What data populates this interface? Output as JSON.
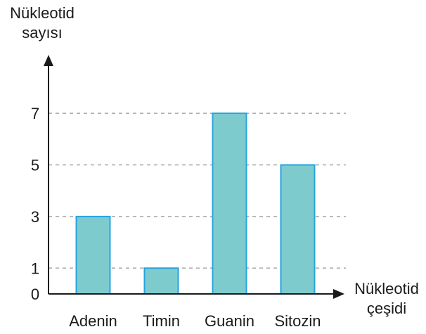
{
  "chart_data": {
    "type": "bar",
    "ylabel_lines": [
      "Nükleotid",
      "sayısı"
    ],
    "xlabel_lines": [
      "Nükleotid",
      "çeşidi"
    ],
    "categories": [
      "Adenin",
      "Timin",
      "Guanin",
      "Sitozin"
    ],
    "values": [
      3,
      1,
      7,
      5
    ],
    "yticks": [
      0,
      1,
      3,
      5,
      7
    ],
    "gridlines_at": [
      1,
      3,
      5,
      7
    ],
    "ylim": [
      0,
      8
    ],
    "grid": "dashed horizontal",
    "colors": {
      "bar_fill": "#7ecbce",
      "bar_stroke": "#29a3df",
      "axis": "#1a1a1a",
      "grid": "#a6a6a6"
    }
  }
}
